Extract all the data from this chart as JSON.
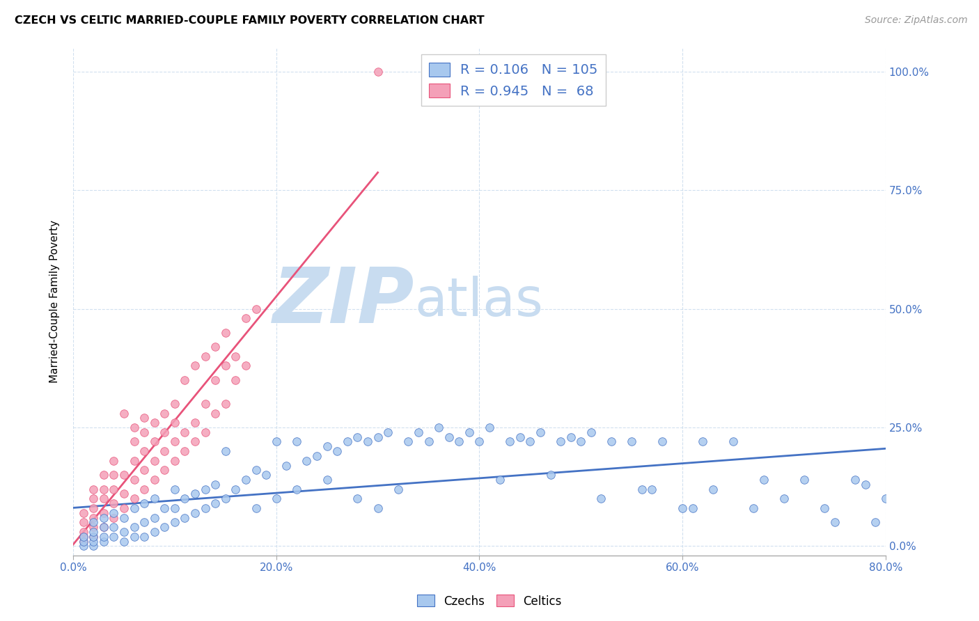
{
  "title": "CZECH VS CELTIC MARRIED-COUPLE FAMILY POVERTY CORRELATION CHART",
  "source": "Source: ZipAtlas.com",
  "ylabel": "Married-Couple Family Poverty",
  "xlim": [
    0.0,
    0.8
  ],
  "ylim": [
    -0.02,
    1.05
  ],
  "legend_labels": [
    "Czechs",
    "Celtics"
  ],
  "blue_color": "#A8C8EE",
  "pink_color": "#F4A0B8",
  "blue_line_color": "#4472C4",
  "pink_line_color": "#E8537A",
  "blue_r": 0.106,
  "blue_n": 105,
  "pink_r": 0.945,
  "pink_n": 68,
  "watermark_zip": "ZIP",
  "watermark_atlas": "atlas",
  "watermark_color_zip": "#C8DCF0",
  "watermark_color_atlas": "#C8DCF0",
  "blue_scatter_x": [
    0.01,
    0.01,
    0.01,
    0.02,
    0.02,
    0.02,
    0.02,
    0.02,
    0.03,
    0.03,
    0.03,
    0.03,
    0.04,
    0.04,
    0.04,
    0.05,
    0.05,
    0.05,
    0.06,
    0.06,
    0.06,
    0.07,
    0.07,
    0.07,
    0.08,
    0.08,
    0.08,
    0.09,
    0.09,
    0.1,
    0.1,
    0.1,
    0.11,
    0.11,
    0.12,
    0.12,
    0.13,
    0.13,
    0.14,
    0.14,
    0.15,
    0.15,
    0.16,
    0.17,
    0.18,
    0.18,
    0.19,
    0.2,
    0.2,
    0.21,
    0.22,
    0.22,
    0.23,
    0.24,
    0.25,
    0.25,
    0.26,
    0.27,
    0.28,
    0.28,
    0.29,
    0.3,
    0.3,
    0.31,
    0.32,
    0.33,
    0.34,
    0.35,
    0.36,
    0.37,
    0.38,
    0.39,
    0.4,
    0.41,
    0.42,
    0.43,
    0.44,
    0.45,
    0.46,
    0.47,
    0.48,
    0.49,
    0.5,
    0.51,
    0.52,
    0.53,
    0.55,
    0.56,
    0.58,
    0.6,
    0.62,
    0.63,
    0.65,
    0.67,
    0.68,
    0.7,
    0.72,
    0.74,
    0.75,
    0.77,
    0.78,
    0.79,
    0.8,
    0.61,
    0.57
  ],
  "blue_scatter_y": [
    0.0,
    0.01,
    0.02,
    0.0,
    0.01,
    0.02,
    0.03,
    0.05,
    0.01,
    0.02,
    0.04,
    0.06,
    0.02,
    0.04,
    0.07,
    0.01,
    0.03,
    0.06,
    0.02,
    0.04,
    0.08,
    0.02,
    0.05,
    0.09,
    0.03,
    0.06,
    0.1,
    0.04,
    0.08,
    0.05,
    0.08,
    0.12,
    0.06,
    0.1,
    0.07,
    0.11,
    0.08,
    0.12,
    0.09,
    0.13,
    0.1,
    0.2,
    0.12,
    0.14,
    0.08,
    0.16,
    0.15,
    0.1,
    0.22,
    0.17,
    0.12,
    0.22,
    0.18,
    0.19,
    0.14,
    0.21,
    0.2,
    0.22,
    0.1,
    0.23,
    0.22,
    0.08,
    0.23,
    0.24,
    0.12,
    0.22,
    0.24,
    0.22,
    0.25,
    0.23,
    0.22,
    0.24,
    0.22,
    0.25,
    0.14,
    0.22,
    0.23,
    0.22,
    0.24,
    0.15,
    0.22,
    0.23,
    0.22,
    0.24,
    0.1,
    0.22,
    0.22,
    0.12,
    0.22,
    0.08,
    0.22,
    0.12,
    0.22,
    0.08,
    0.14,
    0.1,
    0.14,
    0.08,
    0.05,
    0.14,
    0.13,
    0.05,
    0.1,
    0.08,
    0.12
  ],
  "pink_scatter_x": [
    0.01,
    0.01,
    0.01,
    0.01,
    0.01,
    0.02,
    0.02,
    0.02,
    0.02,
    0.02,
    0.02,
    0.03,
    0.03,
    0.03,
    0.03,
    0.03,
    0.04,
    0.04,
    0.04,
    0.04,
    0.04,
    0.05,
    0.05,
    0.05,
    0.05,
    0.06,
    0.06,
    0.06,
    0.06,
    0.06,
    0.07,
    0.07,
    0.07,
    0.07,
    0.07,
    0.08,
    0.08,
    0.08,
    0.08,
    0.09,
    0.09,
    0.09,
    0.09,
    0.1,
    0.1,
    0.1,
    0.1,
    0.11,
    0.11,
    0.11,
    0.12,
    0.12,
    0.12,
    0.13,
    0.13,
    0.13,
    0.14,
    0.14,
    0.14,
    0.15,
    0.15,
    0.15,
    0.16,
    0.16,
    0.17,
    0.17,
    0.18,
    0.3
  ],
  "pink_scatter_y": [
    0.01,
    0.02,
    0.03,
    0.05,
    0.07,
    0.02,
    0.04,
    0.06,
    0.08,
    0.1,
    0.12,
    0.04,
    0.07,
    0.1,
    0.12,
    0.15,
    0.06,
    0.09,
    0.12,
    0.15,
    0.18,
    0.08,
    0.11,
    0.15,
    0.28,
    0.1,
    0.14,
    0.18,
    0.22,
    0.25,
    0.12,
    0.16,
    0.2,
    0.24,
    0.27,
    0.14,
    0.18,
    0.22,
    0.26,
    0.16,
    0.2,
    0.24,
    0.28,
    0.18,
    0.22,
    0.26,
    0.3,
    0.2,
    0.24,
    0.35,
    0.22,
    0.26,
    0.38,
    0.24,
    0.3,
    0.4,
    0.28,
    0.35,
    0.42,
    0.3,
    0.38,
    0.45,
    0.35,
    0.4,
    0.38,
    0.48,
    0.5,
    1.0
  ]
}
